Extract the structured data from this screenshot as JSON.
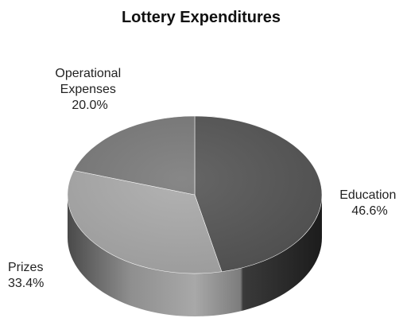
{
  "chart_data": {
    "type": "pie",
    "title": "Lottery Expenditures",
    "slices": [
      {
        "label": "Education",
        "value": 46.6,
        "value_label": "46.6%",
        "color": "#555555"
      },
      {
        "label": "Prizes",
        "value": 33.4,
        "value_label": "33.4%",
        "color": "#aaaaaa"
      },
      {
        "label": "Operational Expenses",
        "value": 20.0,
        "value_label": "20.0%",
        "color": "#7a7a7a"
      }
    ],
    "three_dimensional": true,
    "legend": "none",
    "start_angle": "top",
    "direction": "clockwise"
  }
}
